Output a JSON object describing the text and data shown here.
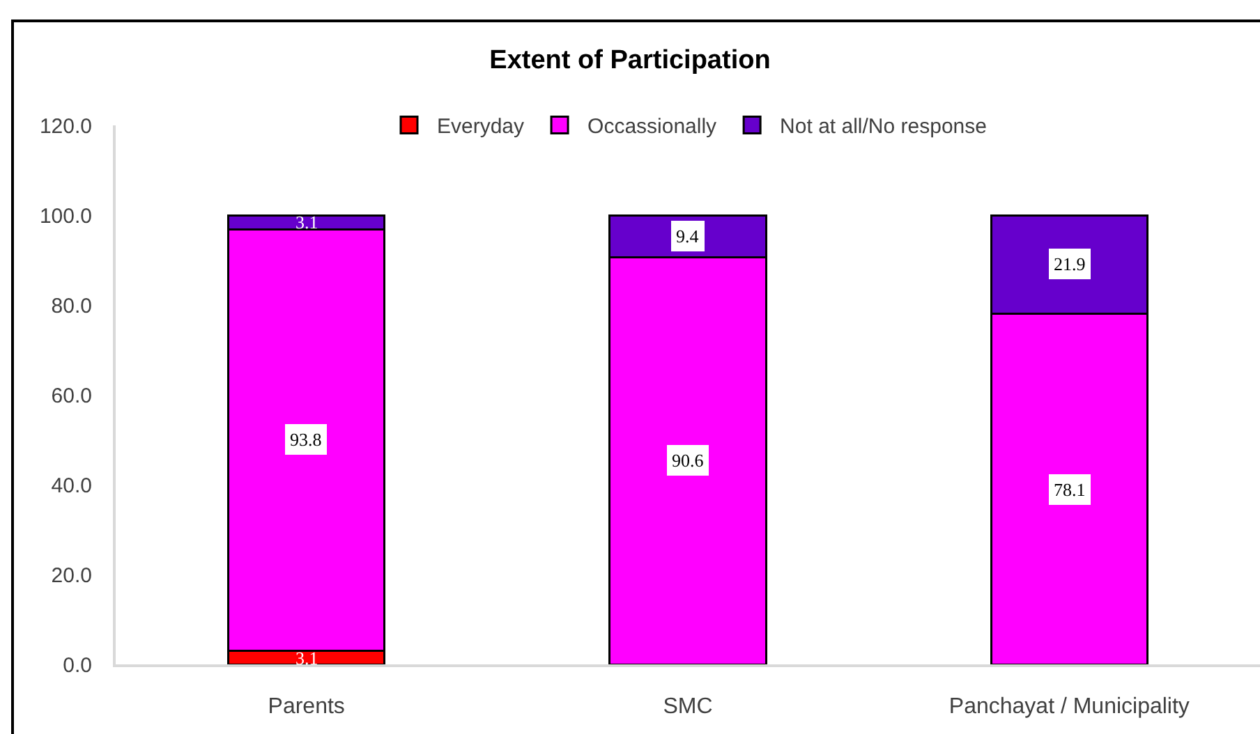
{
  "chart_data": {
    "type": "bar",
    "title": "Extent of Participation",
    "categories": [
      "Parents",
      "SMC",
      "Panchayat / Municipality"
    ],
    "series": [
      {
        "name": "Everyday",
        "color": "#ff0000",
        "values": [
          3.1,
          null,
          null
        ]
      },
      {
        "name": "Occassionally",
        "color": "#ff00ff",
        "values": [
          93.8,
          90.6,
          78.1
        ]
      },
      {
        "name": "Not at all/No response",
        "color": "#6600cc",
        "values": [
          3.1,
          9.4,
          21.9
        ]
      }
    ],
    "stacked": true,
    "ylim": [
      0,
      120
    ],
    "yticks": [
      {
        "value": 0,
        "label": "0.0"
      },
      {
        "value": 20,
        "label": "20.0"
      },
      {
        "value": 40,
        "label": "40.0"
      },
      {
        "value": 60,
        "label": "60.0"
      },
      {
        "value": 80,
        "label": "80.0"
      },
      {
        "value": 100,
        "label": "100.0"
      },
      {
        "value": 120,
        "label": "120.0"
      }
    ],
    "data_labels": true,
    "legend": "top"
  }
}
